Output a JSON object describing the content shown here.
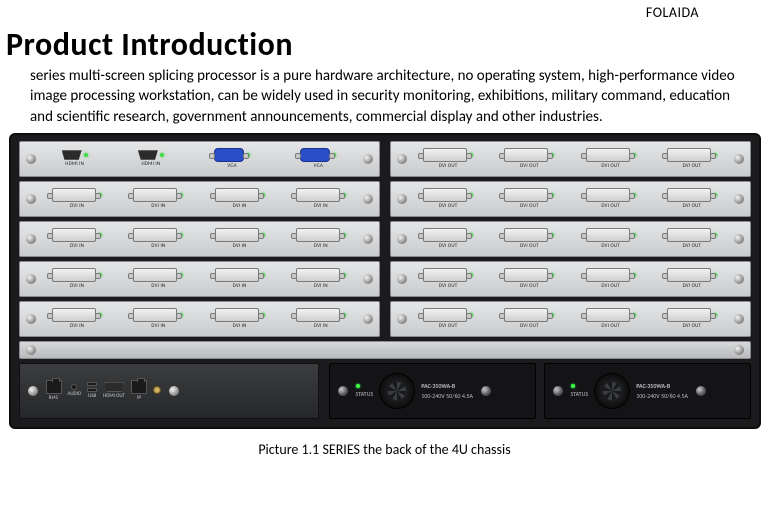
{
  "brand": "FOLAIDA",
  "title": "Product Introduction",
  "description": "series multi-screen splicing processor is a pure hardware architecture, no operating system, high-performance video image processing workstation, can be widely used in security monitoring, exhibitions, military command, education and scientific research, government announcements, commercial display and other industries.",
  "caption": "Picture 1.1    SERIES the back of the 4U chassis",
  "colors": {
    "page_bg": "#ffffff",
    "chassis_bg": "#1b1b1d",
    "card_bg_top": "#e4e6e8",
    "card_bg_bottom": "#c9cbcd",
    "led_green": "#46d84a",
    "vga_blue": "#2a4ec7"
  },
  "chassis": {
    "rows": [
      {
        "left": {
          "ports": [
            {
              "type": "hdmi",
              "label": "HDMI IN"
            },
            {
              "type": "hdmi",
              "label": "HDMI IN"
            },
            {
              "type": "vga",
              "label": "VGA"
            },
            {
              "type": "vga",
              "label": "VGA"
            }
          ]
        },
        "right": {
          "ports": [
            {
              "type": "dvi",
              "label": "DVI OUT"
            },
            {
              "type": "dvi",
              "label": "DVI OUT"
            },
            {
              "type": "dvi",
              "label": "DVI OUT"
            },
            {
              "type": "dvi",
              "label": "DVI OUT"
            }
          ]
        }
      },
      {
        "left": {
          "ports": [
            {
              "type": "dvi",
              "label": "DVI IN"
            },
            {
              "type": "dvi",
              "label": "DVI IN"
            },
            {
              "type": "dvi",
              "label": "DVI IN"
            },
            {
              "type": "dvi",
              "label": "DVI IN"
            }
          ]
        },
        "right": {
          "ports": [
            {
              "type": "dvi",
              "label": "DVI OUT"
            },
            {
              "type": "dvi",
              "label": "DVI OUT"
            },
            {
              "type": "dvi",
              "label": "DVI OUT"
            },
            {
              "type": "dvi",
              "label": "DVI OUT"
            }
          ]
        }
      },
      {
        "left": {
          "ports": [
            {
              "type": "dvi",
              "label": "DVI IN"
            },
            {
              "type": "dvi",
              "label": "DVI IN"
            },
            {
              "type": "dvi",
              "label": "DVI IN"
            },
            {
              "type": "dvi",
              "label": "DVI IN"
            }
          ]
        },
        "right": {
          "ports": [
            {
              "type": "dvi",
              "label": "DVI OUT"
            },
            {
              "type": "dvi",
              "label": "DVI OUT"
            },
            {
              "type": "dvi",
              "label": "DVI OUT"
            },
            {
              "type": "dvi",
              "label": "DVI OUT"
            }
          ]
        }
      },
      {
        "left": {
          "ports": [
            {
              "type": "dvi",
              "label": "DVI IN"
            },
            {
              "type": "dvi",
              "label": "DVI IN"
            },
            {
              "type": "dvi",
              "label": "DVI IN"
            },
            {
              "type": "dvi",
              "label": "DVI IN"
            }
          ]
        },
        "right": {
          "ports": [
            {
              "type": "dvi",
              "label": "DVI OUT"
            },
            {
              "type": "dvi",
              "label": "DVI OUT"
            },
            {
              "type": "dvi",
              "label": "DVI OUT"
            },
            {
              "type": "dvi",
              "label": "DVI OUT"
            }
          ]
        }
      },
      {
        "left": {
          "ports": [
            {
              "type": "dvi",
              "label": "DVI IN"
            },
            {
              "type": "dvi",
              "label": "DVI IN"
            },
            {
              "type": "dvi",
              "label": "DVI IN"
            },
            {
              "type": "dvi",
              "label": "DVI IN"
            }
          ]
        },
        "right": {
          "ports": [
            {
              "type": "dvi",
              "label": "DVI OUT"
            },
            {
              "type": "dvi",
              "label": "DVI OUT"
            },
            {
              "type": "dvi",
              "label": "DVI OUT"
            },
            {
              "type": "dvi",
              "label": "DVI OUT"
            }
          ]
        }
      }
    ],
    "control": {
      "ports": [
        {
          "type": "rj45",
          "label": "RJ45"
        },
        {
          "type": "audio",
          "label": "AUDIO"
        },
        {
          "type": "usb",
          "label": "USB"
        },
        {
          "type": "hdmi",
          "label": "HDMI OUT"
        },
        {
          "type": "rj45",
          "label": "IP"
        },
        {
          "type": "ant",
          "label": ""
        }
      ]
    },
    "psus": [
      {
        "model": "PAC-350WA-B",
        "status": "STATUS",
        "spec": "100-240V 50/60 4.5A"
      },
      {
        "model": "PAC-350WA-B",
        "status": "STATUS",
        "spec": "100-240V 50/60 4.5A"
      }
    ]
  }
}
